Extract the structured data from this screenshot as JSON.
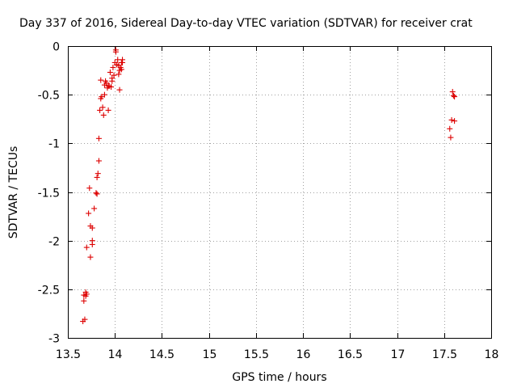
{
  "chart_data": {
    "type": "scatter",
    "title": "Day 337 of 2016, Sidereal Day-to-day VTEC variation (SDTVAR) for receiver crat",
    "xlabel": "GPS time / hours",
    "ylabel": "SDTVAR / TECUs",
    "xlim": [
      13.5,
      18
    ],
    "ylim": [
      -3,
      0
    ],
    "xticks": [
      "13.5",
      "14",
      "14.5",
      "15",
      "15.5",
      "16",
      "16.5",
      "17",
      "17.5",
      "18"
    ],
    "yticks": [
      "0",
      "-0.5",
      "-1",
      "-1.5",
      "-2",
      "-2.5",
      "-3"
    ],
    "grid": true,
    "marker": "+",
    "color": "#dd0000",
    "series": [
      {
        "points": [
          [
            13.66,
            -2.83
          ],
          [
            13.68,
            -2.81
          ],
          [
            13.67,
            -2.62
          ],
          [
            13.67,
            -2.56
          ],
          [
            13.69,
            -2.53
          ],
          [
            13.69,
            -2.57
          ],
          [
            13.7,
            -2.55
          ],
          [
            13.7,
            -2.07
          ],
          [
            13.72,
            -1.72
          ],
          [
            13.73,
            -1.46
          ],
          [
            13.74,
            -2.17
          ],
          [
            13.74,
            -1.85
          ],
          [
            13.76,
            -1.87
          ],
          [
            13.76,
            -2.04
          ],
          [
            13.76,
            -2.0
          ],
          [
            13.78,
            -1.67
          ],
          [
            13.8,
            -1.51
          ],
          [
            13.81,
            -1.52
          ],
          [
            13.81,
            -1.35
          ],
          [
            13.82,
            -1.31
          ],
          [
            13.83,
            -1.18
          ],
          [
            13.83,
            -0.95
          ],
          [
            13.84,
            -0.66
          ],
          [
            13.85,
            -0.54
          ],
          [
            13.85,
            -0.35
          ],
          [
            13.86,
            -0.52
          ],
          [
            13.87,
            -0.63
          ],
          [
            13.88,
            -0.71
          ],
          [
            13.89,
            -0.5
          ],
          [
            13.89,
            -0.4
          ],
          [
            13.9,
            -0.36
          ],
          [
            13.91,
            -0.38
          ],
          [
            13.92,
            -0.43
          ],
          [
            13.93,
            -0.41
          ],
          [
            13.93,
            -0.66
          ],
          [
            13.94,
            -0.41
          ],
          [
            13.95,
            -0.27
          ],
          [
            13.96,
            -0.42
          ],
          [
            13.97,
            -0.33
          ],
          [
            13.97,
            -0.36
          ],
          [
            13.98,
            -0.22
          ],
          [
            13.99,
            -0.3
          ],
          [
            14.0,
            -0.17
          ],
          [
            14.01,
            -0.04
          ],
          [
            14.01,
            -0.06
          ],
          [
            14.02,
            -0.19
          ],
          [
            14.03,
            -0.14
          ],
          [
            14.04,
            -0.2
          ],
          [
            14.04,
            -0.29
          ],
          [
            14.05,
            -0.45
          ],
          [
            14.05,
            -0.25
          ],
          [
            14.06,
            -0.22
          ],
          [
            14.07,
            -0.24
          ],
          [
            14.07,
            -0.17
          ],
          [
            14.08,
            -0.14
          ],
          [
            14.08,
            -0.17
          ],
          [
            17.56,
            -0.85
          ],
          [
            17.57,
            -0.94
          ],
          [
            17.58,
            -0.76
          ],
          [
            17.59,
            -0.47
          ],
          [
            17.6,
            -0.51
          ],
          [
            17.61,
            -0.52
          ],
          [
            17.61,
            -0.77
          ]
        ]
      }
    ]
  }
}
